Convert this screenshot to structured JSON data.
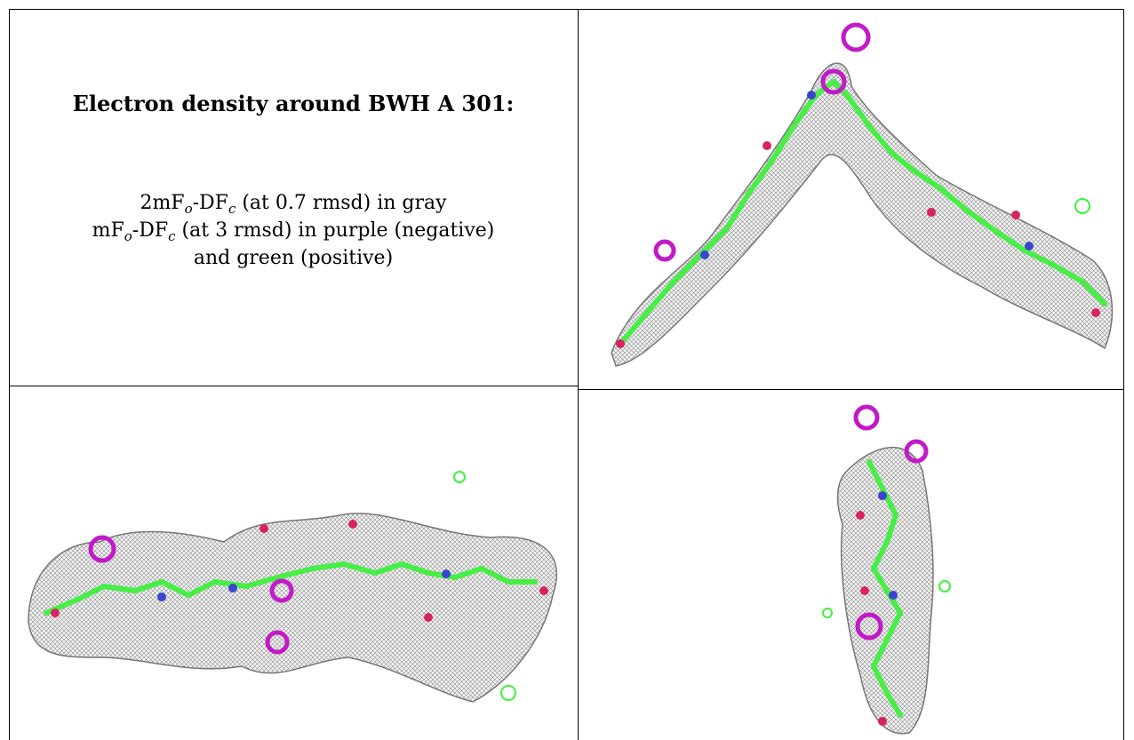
{
  "caption": {
    "title": "Electron density around BWH A 301:",
    "line1": {
      "pre": "2mF",
      "sub1": "o",
      "mid": "-DF",
      "sub2": "c",
      "post": " (at 0.7 rmsd) in gray"
    },
    "line2": {
      "pre": "mF",
      "sub1": "o",
      "mid": "-DF",
      "sub2": "c",
      "post": " (at 3 rmsd) in purple (negative)"
    },
    "line3": "and green (positive)"
  },
  "panels": [
    {
      "name": "view-top-right",
      "description": "ligand density view, bent chain"
    },
    {
      "name": "view-bottom-left",
      "description": "ligand density view, side-on chain"
    },
    {
      "name": "view-bottom-right",
      "description": "ligand density view, end-on"
    }
  ],
  "colors": {
    "density_gray": "#9a9a9a",
    "negative_purple": "#c21ac9",
    "positive_green": "#3cf23c",
    "carbon": "#4cf04c",
    "oxygen": "#d8245e",
    "nitrogen": "#3a44d0"
  }
}
